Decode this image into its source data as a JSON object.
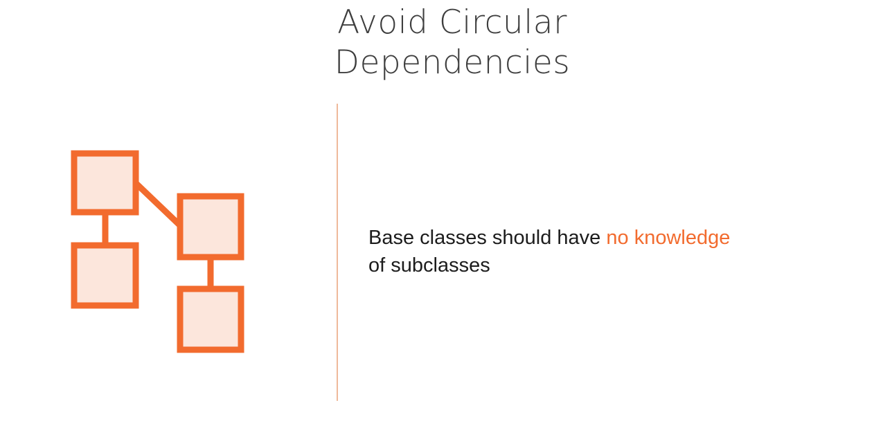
{
  "slide": {
    "title_line1": "Avoid Circular",
    "title_line2": "Dependencies"
  },
  "statement": {
    "text_before": "Base classes should have ",
    "highlight": "no knowledge",
    "text_after": "of subclasses"
  },
  "diagram": {
    "icon": "class-hierarchy-icon",
    "node_count": 4,
    "stroke_color": "#f26b2e",
    "fill_color": "#fce6dc"
  },
  "colors": {
    "accent": "#f26b2e",
    "divider": "#efb99a",
    "title_text": "#3e3e3e",
    "body_text": "#1c1c1c"
  }
}
